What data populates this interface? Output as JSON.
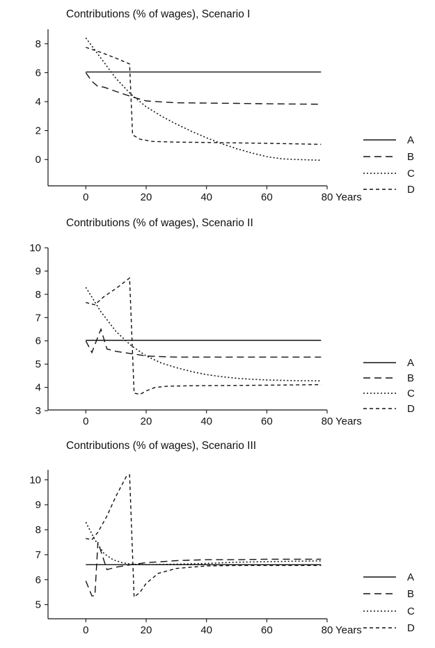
{
  "chart_data": [
    {
      "type": "line",
      "title": "Contributions (% of wages), Scenario I",
      "xlabel": "Years",
      "ylabel": "",
      "xlim": [
        -10,
        80
      ],
      "ylim": [
        -1,
        9
      ],
      "xticks": [
        0,
        20,
        40,
        60,
        80
      ],
      "xtick_labels": [
        "0",
        "20",
        "40",
        "60",
        "80"
      ],
      "yticks": [
        0,
        2,
        4,
        6,
        8
      ],
      "ytick_labels": [
        "0",
        "2",
        "4",
        "6",
        "8"
      ],
      "grid": false,
      "legend": "right",
      "series": [
        {
          "name": "A",
          "style": "solid",
          "x": [
            0,
            78
          ],
          "y": [
            6.05,
            6.05
          ]
        },
        {
          "name": "B",
          "style": "dash",
          "x": [
            0,
            2,
            4,
            6,
            10,
            15,
            20,
            25,
            30,
            40,
            50,
            60,
            70,
            78
          ],
          "y": [
            6.0,
            5.4,
            5.05,
            5.0,
            4.7,
            4.35,
            4.05,
            3.98,
            3.92,
            3.9,
            3.88,
            3.85,
            3.83,
            3.82
          ]
        },
        {
          "name": "C",
          "style": "dot",
          "x": [
            0,
            5,
            10,
            15,
            20,
            25,
            30,
            35,
            40,
            45,
            50,
            55,
            60,
            65,
            70,
            78
          ],
          "y": [
            8.4,
            7.0,
            5.6,
            4.5,
            3.65,
            3.0,
            2.45,
            1.95,
            1.5,
            1.1,
            0.75,
            0.45,
            0.2,
            0.05,
            0.0,
            -0.05
          ]
        },
        {
          "name": "D",
          "style": "shortdash",
          "x": [
            0,
            5,
            10,
            14.5,
            15.5,
            18,
            22,
            30,
            40,
            50,
            60,
            70,
            78
          ],
          "y": [
            7.75,
            7.4,
            7.0,
            6.6,
            1.7,
            1.4,
            1.25,
            1.2,
            1.18,
            1.15,
            1.12,
            1.08,
            1.05
          ]
        }
      ]
    },
    {
      "type": "line",
      "title": "Contributions (% of wages), Scenario II",
      "xlabel": "Years",
      "ylabel": "",
      "xlim": [
        -10,
        80
      ],
      "ylim": [
        3,
        10
      ],
      "xticks": [
        0,
        20,
        40,
        60,
        80
      ],
      "xtick_labels": [
        "0",
        "20",
        "40",
        "60",
        "80"
      ],
      "yticks": [
        3,
        4,
        5,
        6,
        7,
        8,
        9,
        10
      ],
      "ytick_labels": [
        "3",
        "4",
        "5",
        "6",
        "7",
        "8",
        "9",
        "10"
      ],
      "grid": false,
      "legend": "right",
      "series": [
        {
          "name": "A",
          "style": "solid",
          "x": [
            0,
            78
          ],
          "y": [
            6.02,
            6.02
          ]
        },
        {
          "name": "B",
          "style": "dash",
          "x": [
            0,
            2,
            5,
            7,
            10,
            15,
            20,
            25,
            30,
            40,
            50,
            60,
            70,
            78
          ],
          "y": [
            6.0,
            5.5,
            6.5,
            5.65,
            5.55,
            5.45,
            5.35,
            5.32,
            5.3,
            5.3,
            5.3,
            5.3,
            5.3,
            5.3
          ]
        },
        {
          "name": "C",
          "style": "dot",
          "x": [
            0,
            5,
            10,
            15,
            20,
            25,
            30,
            35,
            40,
            45,
            50,
            55,
            60,
            65,
            70,
            78
          ],
          "y": [
            8.3,
            7.25,
            6.4,
            5.8,
            5.35,
            5.05,
            4.85,
            4.68,
            4.55,
            4.46,
            4.39,
            4.35,
            4.32,
            4.3,
            4.29,
            4.28
          ]
        },
        {
          "name": "D",
          "style": "shortdash",
          "x": [
            0,
            3,
            6,
            10,
            14.5,
            16,
            18,
            20,
            23,
            27,
            35,
            45,
            55,
            65,
            78
          ],
          "y": [
            7.65,
            7.55,
            7.9,
            8.25,
            8.7,
            3.75,
            3.7,
            3.85,
            4.0,
            4.05,
            4.07,
            4.08,
            4.09,
            4.1,
            4.12
          ]
        }
      ]
    },
    {
      "type": "line",
      "title": "Contributions (% of wages), Scenario III",
      "xlabel": "Years",
      "ylabel": "",
      "xlim": [
        -10,
        80
      ],
      "ylim": [
        4.6,
        10.4
      ],
      "xticks": [
        0,
        20,
        40,
        60,
        80
      ],
      "xtick_labels": [
        "0",
        "20",
        "40",
        "60",
        "80"
      ],
      "yticks": [
        5,
        6,
        7,
        8,
        9,
        10
      ],
      "ytick_labels": [
        "5",
        "6",
        "7",
        "8",
        "9",
        "10"
      ],
      "grid": false,
      "legend": "right",
      "series": [
        {
          "name": "A",
          "style": "solid",
          "x": [
            0,
            78
          ],
          "y": [
            6.6,
            6.6
          ]
        },
        {
          "name": "B",
          "style": "dash",
          "x": [
            0,
            2,
            3,
            4,
            7,
            10,
            15,
            20,
            25,
            30,
            40,
            50,
            60,
            70,
            78
          ],
          "y": [
            5.95,
            5.35,
            5.35,
            7.5,
            6.4,
            6.5,
            6.6,
            6.68,
            6.72,
            6.76,
            6.8,
            6.8,
            6.82,
            6.82,
            6.82
          ]
        },
        {
          "name": "C",
          "style": "dot",
          "x": [
            0,
            3,
            6,
            9,
            12,
            15,
            20,
            30,
            40,
            50,
            60,
            70,
            78
          ],
          "y": [
            8.3,
            7.6,
            7.05,
            6.8,
            6.68,
            6.62,
            6.6,
            6.62,
            6.65,
            6.7,
            6.72,
            6.74,
            6.75
          ]
        },
        {
          "name": "D",
          "style": "shortdash",
          "x": [
            0,
            2,
            4,
            7,
            10,
            13.5,
            14.5,
            16,
            18,
            20,
            24,
            30,
            40,
            50,
            60,
            70,
            78
          ],
          "y": [
            7.65,
            7.6,
            7.9,
            8.55,
            9.35,
            10.15,
            10.2,
            5.3,
            5.5,
            5.85,
            6.25,
            6.45,
            6.55,
            6.57,
            6.57,
            6.57,
            6.57
          ]
        }
      ]
    }
  ]
}
